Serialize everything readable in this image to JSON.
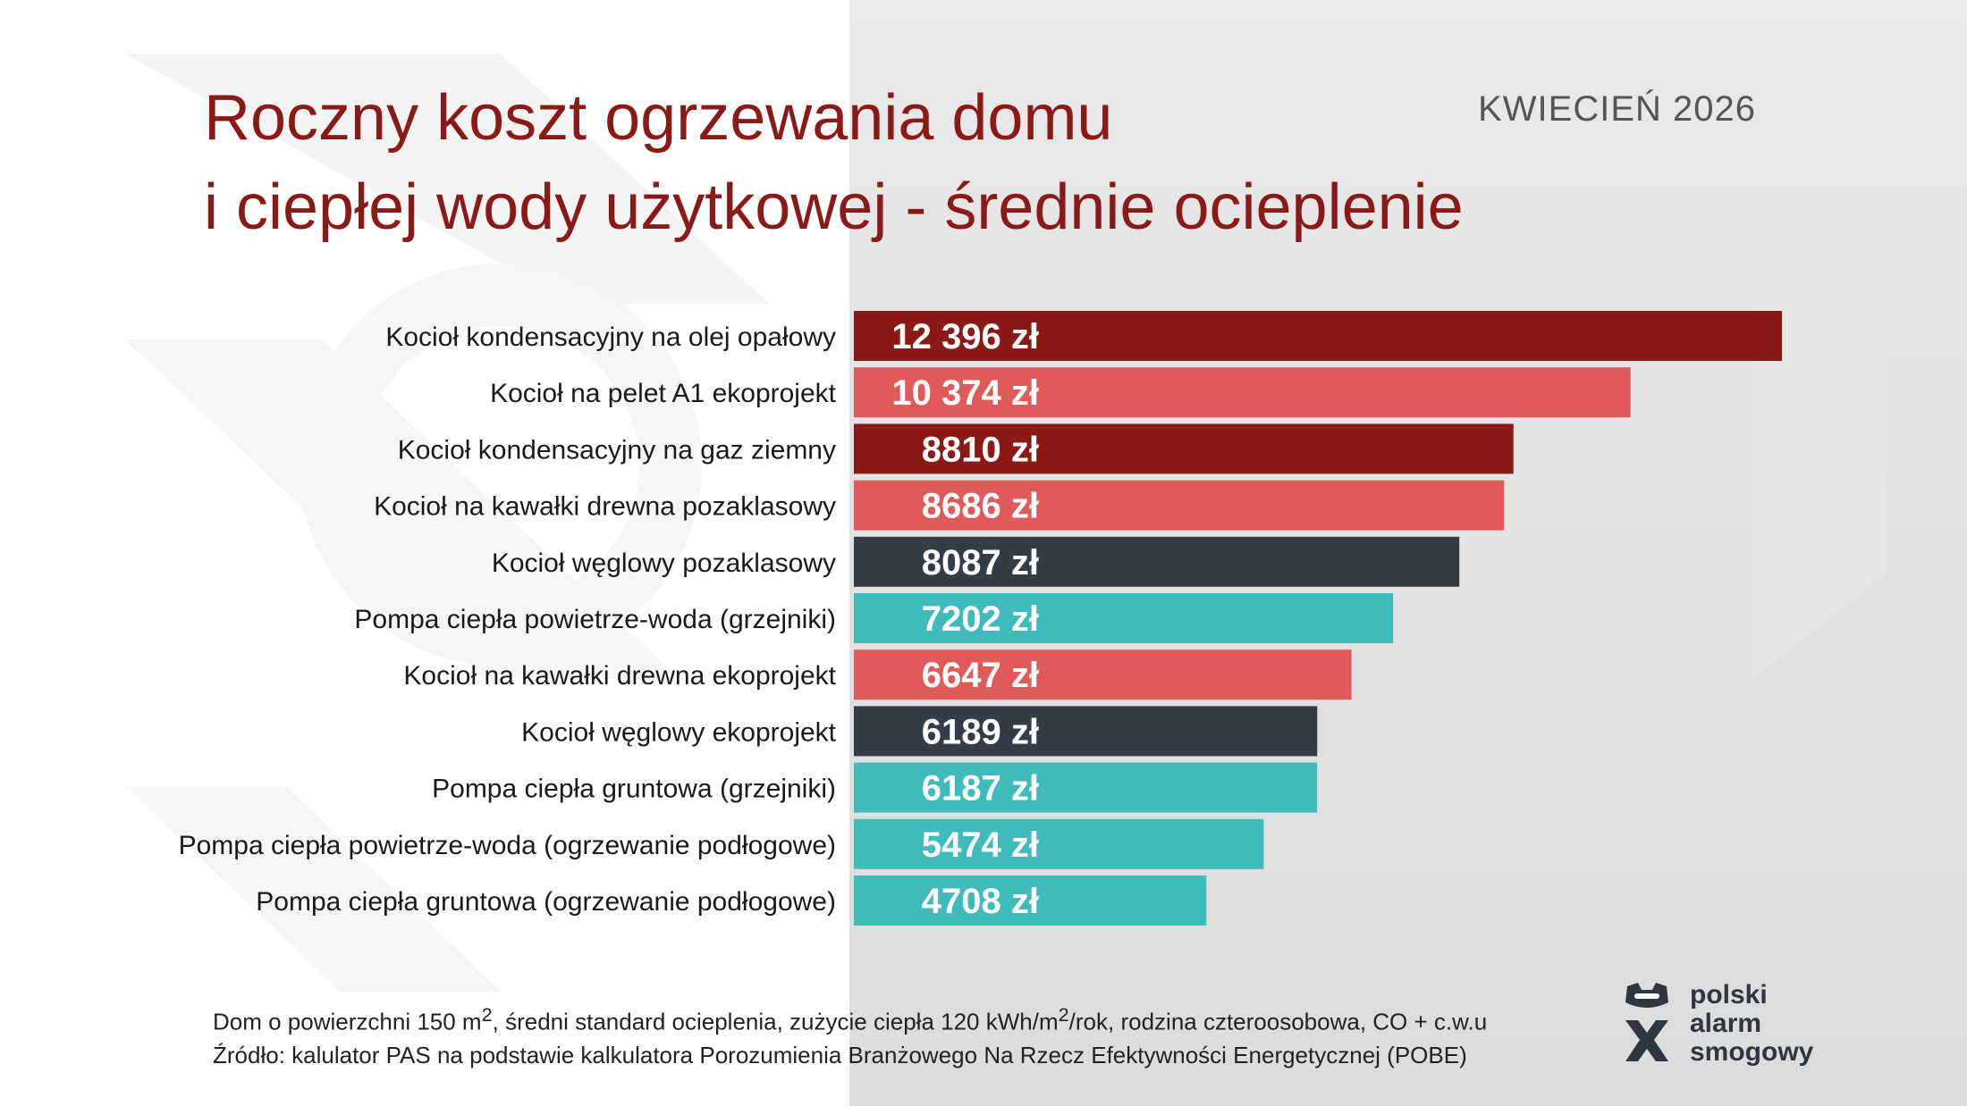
{
  "header": {
    "title_line1": "Roczny koszt ogrzewania domu",
    "title_line2": "i ciepłej wody użytkowej - średnie ocieplenie",
    "date": "KWIECIEŃ 2026"
  },
  "chart_data": {
    "type": "bar",
    "orientation": "horizontal",
    "categories": [
      "Kocioł kondensacyjny na olej opałowy",
      "Kocioł na pelet A1 ekoprojekt",
      "Kocioł kondensacyjny na gaz ziemny",
      "Kocioł na kawałki drewna pozaklasowy",
      "Kocioł węglowy pozaklasowy",
      "Pompa ciepła powietrze-woda (grzejniki)",
      "Kocioł na kawałki drewna ekoprojekt",
      "Kocioł węglowy ekoprojekt",
      "Pompa ciepła gruntowa (grzejniki)",
      "Pompa ciepła powietrze-woda (ogrzewanie podłogowe)",
      "Pompa ciepła gruntowa (ogrzewanie podłogowe)"
    ],
    "values": [
      12396,
      10374,
      8810,
      8686,
      8087,
      7202,
      6647,
      6189,
      6187,
      5474,
      4708
    ],
    "value_labels": [
      "12 396 zł",
      "10 374 zł",
      "8810 zł",
      "8686 zł",
      "8087 zł",
      "7202 zł",
      "6647 zł",
      "6189 zł",
      "6187 zł",
      "5474 zł",
      "4708 zł"
    ],
    "bar_colors": [
      "#8b1a16",
      "#e05a5a",
      "#8b1a16",
      "#e05a5a",
      "#343d47",
      "#3fbbbb",
      "#e05a5a",
      "#343d47",
      "#3fbbbb",
      "#3fbbbb",
      "#3fbbbb"
    ],
    "unit": "zł",
    "xlim": [
      0,
      12396
    ],
    "grid": false,
    "legend": "none"
  },
  "footnote": {
    "line1_a": "Dom o powierzchni 150 m",
    "line1_sup1": "2",
    "line1_b": ", średni standard ocieplenia, zużycie ciepła 120 kWh/m",
    "line1_sup2": "2",
    "line1_c": "/rok, rodzina czteroosobowa, CO + c.w.u",
    "line2": "Źródło: kalulator PAS na podstawie kalkulatora Porozumienia Branżowego Na Rzecz Efektywności Energetycznej (POBE)"
  },
  "logo": {
    "line1": "polski",
    "line2": "alarm",
    "line3": "smogowy",
    "icon": "polski-alarm-smogowy-logo-icon",
    "color": "#2f3640"
  }
}
